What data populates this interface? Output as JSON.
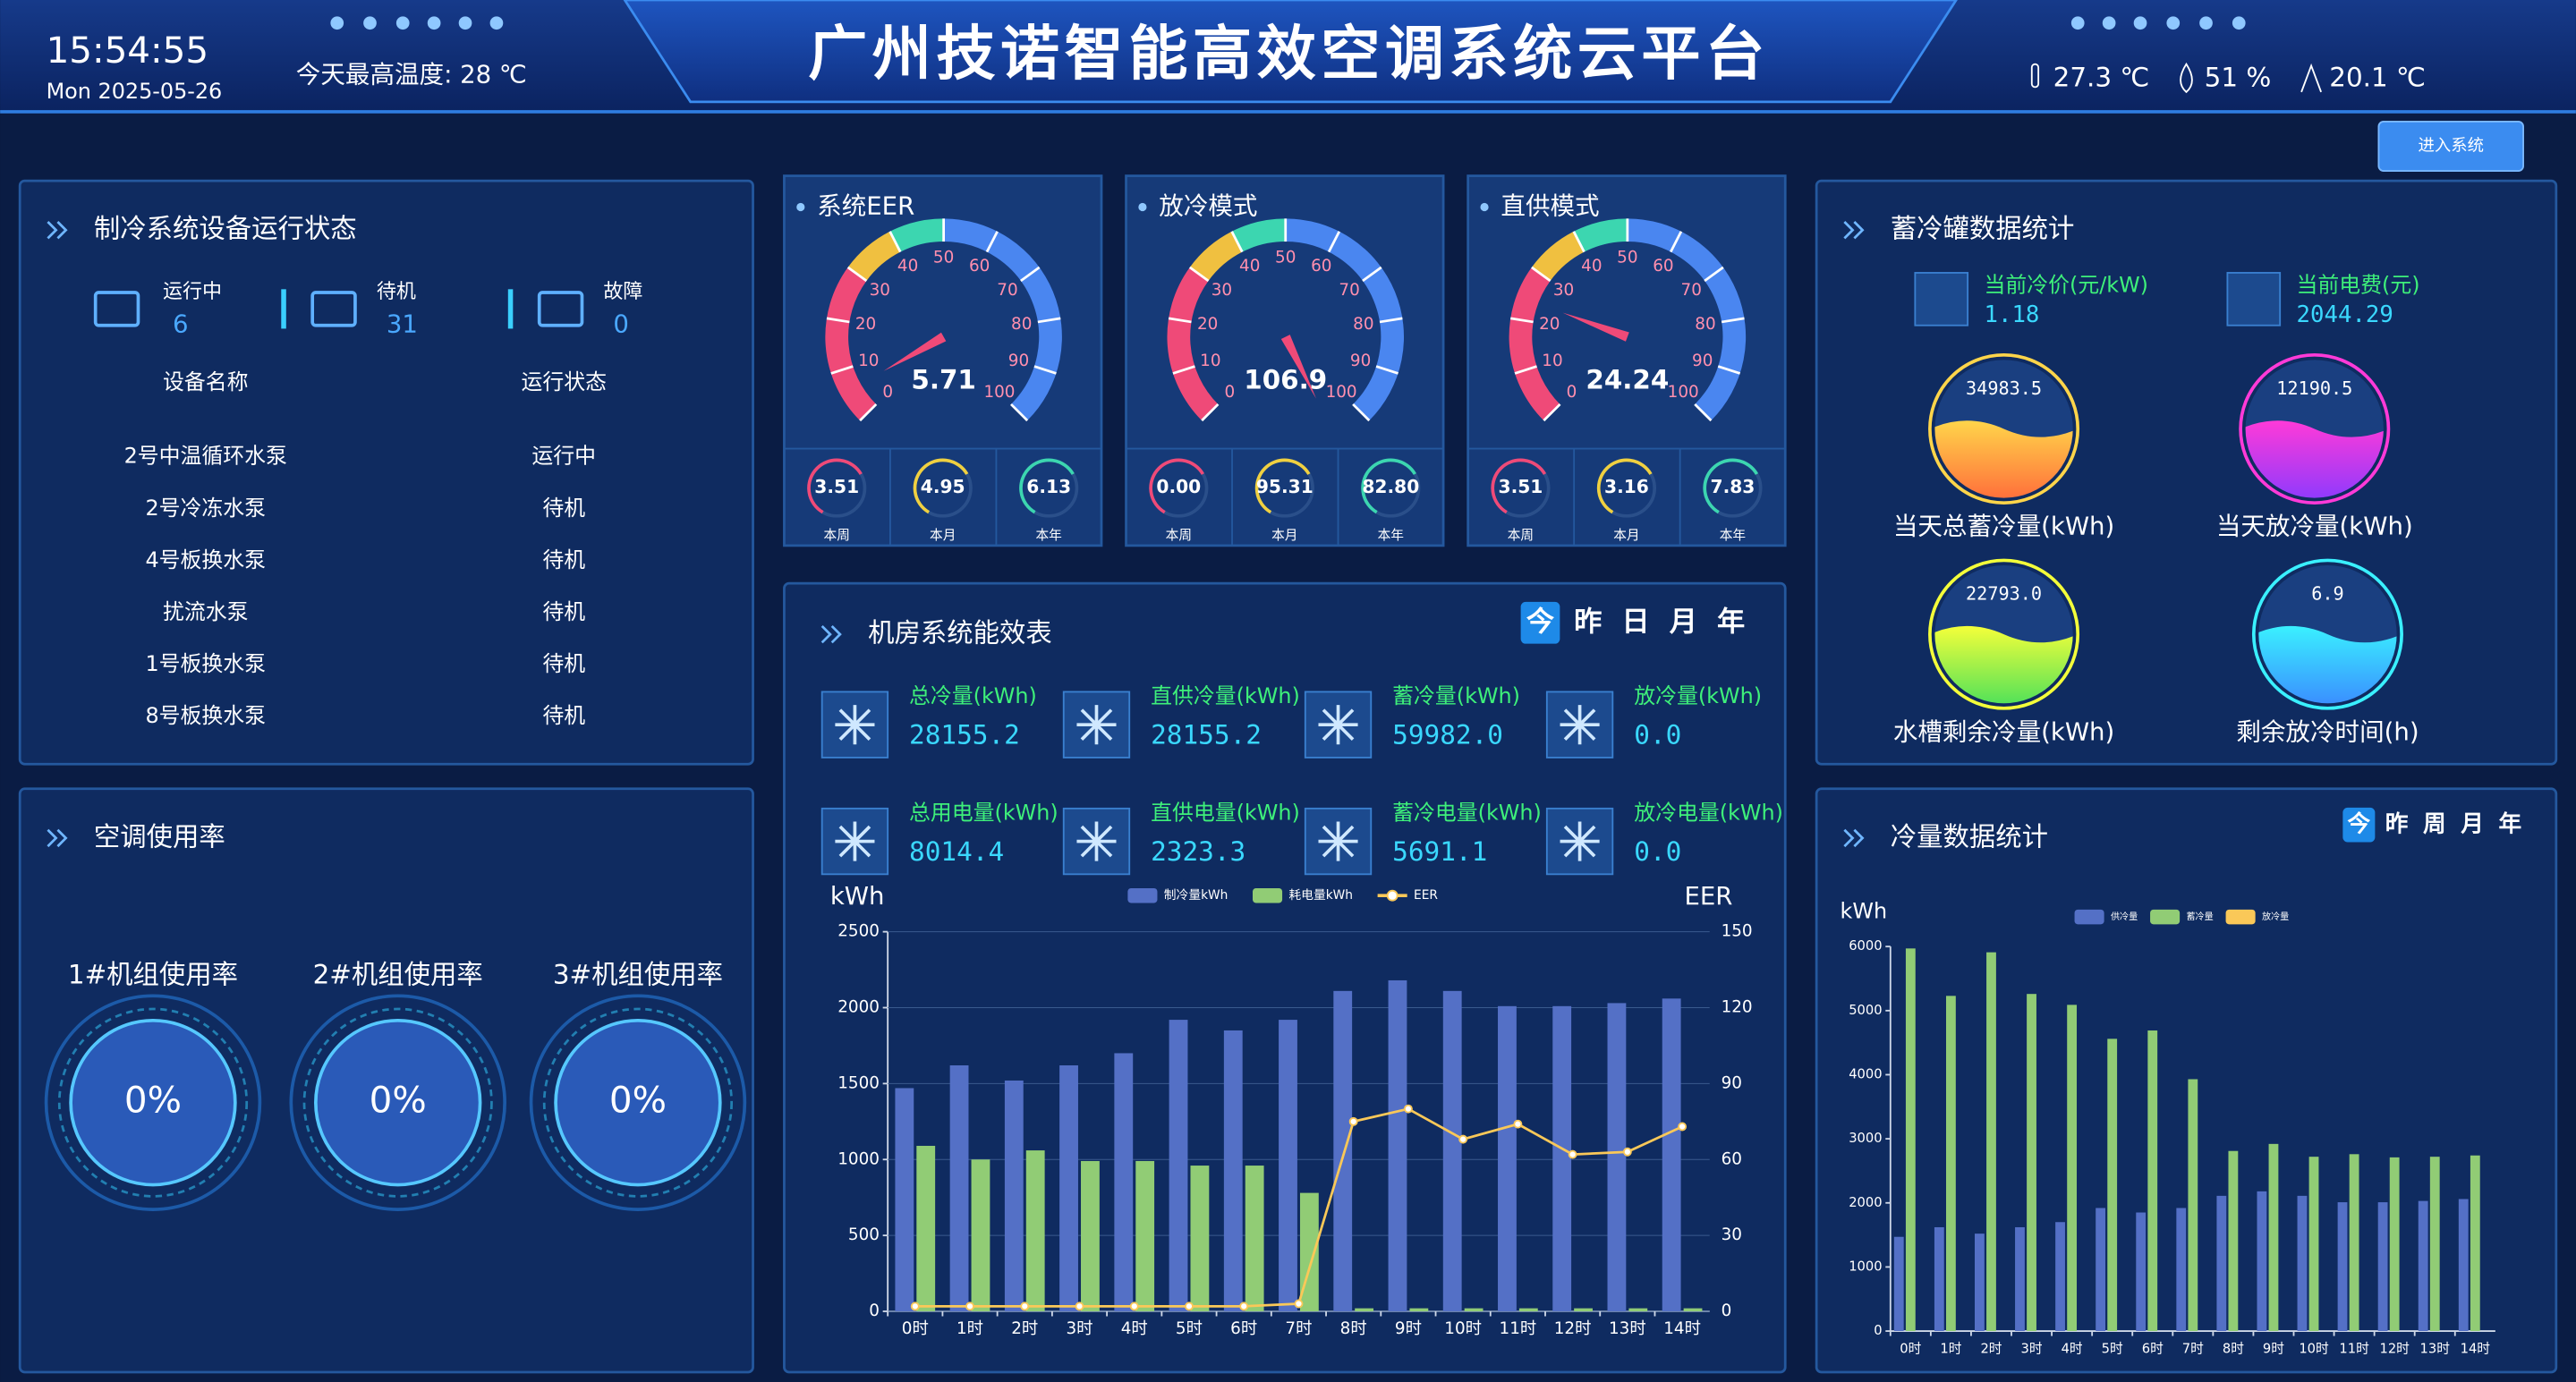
{
  "header": {
    "time": "15:54:55",
    "date": "Mon 2025-05-26",
    "max_temp": "今天最高温度: 28 ℃",
    "title": "广州技诺智能高效空调系统云平台",
    "temperature": "27.3 ℃",
    "humidity": "51 %",
    "outdoor": "20.1 ℃",
    "button": "进入系统"
  },
  "status_panel": {
    "title": "制冷系统设备运行状态",
    "stats": [
      {
        "label": "运行中",
        "value": 6
      },
      {
        "label": "待机",
        "value": 31
      },
      {
        "label": "故障",
        "value": 0
      }
    ],
    "columns": [
      "设备名称",
      "运行状态"
    ],
    "rows": [
      [
        "2号中温循环水泵",
        "运行中"
      ],
      [
        "2号冷冻水泵",
        "待机"
      ],
      [
        "4号板换水泵",
        "待机"
      ],
      [
        "扰流水泵",
        "待机"
      ],
      [
        "1号板换水泵",
        "待机"
      ],
      [
        "8号板换水泵",
        "待机"
      ]
    ]
  },
  "usage_panel": {
    "title": "空调使用率",
    "units": [
      {
        "name": "1#机组使用率",
        "value": "0%"
      },
      {
        "name": "2#机组使用率",
        "value": "0%"
      },
      {
        "name": "3#机组使用率",
        "value": "0%"
      }
    ]
  },
  "energy_panel": {
    "title": "机房系统能效表",
    "tabs": [
      "今",
      "昨",
      "日",
      "月",
      "年"
    ],
    "items": [
      {
        "label": "总冷量(kWh)",
        "value": "28155.2"
      },
      {
        "label": "直供冷量(kWh)",
        "value": "28155.2"
      },
      {
        "label": "蓄冷量(kWh)",
        "value": "59982.0"
      },
      {
        "label": "放冷量(kWh)",
        "value": "0.0"
      },
      {
        "label": "总用电量(kWh)",
        "value": "8014.4"
      },
      {
        "label": "直供电量(kWh)",
        "value": "2323.3"
      },
      {
        "label": "蓄冷电量(kWh)",
        "value": "5691.1"
      },
      {
        "label": "放冷电量(kWh)",
        "value": "0.0"
      }
    ]
  },
  "storage_panel": {
    "title": "蓄冷罐数据统计",
    "items": [
      {
        "label": "当前冷价(元/kW)",
        "value": "1.18"
      },
      {
        "label": "当前电费(元)",
        "value": "2044.29"
      }
    ],
    "balls": [
      {
        "value": "34983.5",
        "label": "当天总蓄冷量(kWh)",
        "colors": [
          "#ffd54a",
          "#ff6a3a"
        ]
      },
      {
        "value": "12190.5",
        "label": "当天放冷量(kWh)",
        "colors": [
          "#ff3ad8",
          "#8a3aff"
        ]
      },
      {
        "value": "22793.0",
        "label": "水槽剩余冷量(kWh)",
        "colors": [
          "#f4ff3a",
          "#4ae05a"
        ]
      },
      {
        "value": "6.9",
        "label": "剩余放冷时间(h)",
        "colors": [
          "#3af0ff",
          "#3a8aff"
        ]
      }
    ]
  },
  "cold_panel": {
    "title": "冷量数据统计",
    "tabs": [
      "今",
      "昨",
      "周",
      "月",
      "年"
    ]
  },
  "chart_data": [
    {
      "type": "gauge",
      "title": "系统EER",
      "value": 5.71,
      "ylim": [
        0,
        100
      ],
      "yticks": [
        0,
        10,
        20,
        30,
        40,
        50,
        60,
        70,
        80,
        90,
        100
      ],
      "bands": [
        {
          "to": 30,
          "color": "#ef4a78"
        },
        {
          "to": 40,
          "color": "#f0c040"
        },
        {
          "to": 50,
          "color": "#3cd6b0"
        },
        {
          "to": 100,
          "color": "#4a86f0"
        }
      ],
      "stats": [
        {
          "value": "3.51",
          "label": "本周"
        },
        {
          "value": "4.95",
          "label": "本月"
        },
        {
          "value": "6.13",
          "label": "本年"
        }
      ]
    },
    {
      "type": "gauge",
      "title": "放冷模式",
      "value": 106.9,
      "ylim": [
        0,
        100
      ],
      "yticks": [
        0,
        10,
        20,
        30,
        40,
        50,
        60,
        70,
        80,
        90,
        100
      ],
      "bands": [
        {
          "to": 30,
          "color": "#ef4a78"
        },
        {
          "to": 40,
          "color": "#f0c040"
        },
        {
          "to": 50,
          "color": "#3cd6b0"
        },
        {
          "to": 100,
          "color": "#4a86f0"
        }
      ],
      "stats": [
        {
          "value": "0.00",
          "label": "本周"
        },
        {
          "value": "95.31",
          "label": "本月"
        },
        {
          "value": "82.80",
          "label": "本年"
        }
      ]
    },
    {
      "type": "gauge",
      "title": "直供模式",
      "value": 24.24,
      "ylim": [
        0,
        100
      ],
      "yticks": [
        0,
        10,
        20,
        30,
        40,
        50,
        60,
        70,
        80,
        90,
        100
      ],
      "bands": [
        {
          "to": 30,
          "color": "#ef4a78"
        },
        {
          "to": 40,
          "color": "#f0c040"
        },
        {
          "to": 50,
          "color": "#3cd6b0"
        },
        {
          "to": 100,
          "color": "#4a86f0"
        }
      ],
      "stats": [
        {
          "value": "3.51",
          "label": "本周"
        },
        {
          "value": "3.16",
          "label": "本月"
        },
        {
          "value": "7.83",
          "label": "本年"
        }
      ]
    },
    {
      "type": "bar",
      "ylabel": "kWh",
      "y2label": "EER",
      "grid": true,
      "categories": [
        "0时",
        "1时",
        "2时",
        "3时",
        "4时",
        "5时",
        "6时",
        "7时",
        "8时",
        "9时",
        "10时",
        "11时",
        "12时",
        "13时",
        "14时"
      ],
      "series": [
        {
          "name": "制冷量kWh",
          "color": "#5470c6",
          "values": [
            1470,
            1620,
            1520,
            1620,
            1700,
            1920,
            1850,
            1920,
            2110,
            2180,
            2110,
            2010,
            2010,
            2030,
            2060
          ]
        },
        {
          "name": "耗电量kWh",
          "color": "#91cc75",
          "values": [
            1090,
            1000,
            1060,
            990,
            990,
            960,
            960,
            780,
            20,
            20,
            20,
            20,
            20,
            20,
            20
          ]
        },
        {
          "name": "EER",
          "color": "#fac858",
          "type": "line",
          "axis": "y2",
          "values": [
            2,
            2,
            2,
            2,
            2,
            2,
            2,
            3,
            75,
            80,
            68,
            74,
            62,
            63,
            73
          ]
        }
      ],
      "ylim": [
        0,
        2500
      ],
      "yticks": [
        0,
        500,
        1000,
        1500,
        2000,
        2500
      ],
      "y2lim": [
        0,
        150
      ],
      "y2ticks": [
        0,
        30,
        60,
        90,
        120,
        150
      ]
    },
    {
      "type": "bar",
      "ylabel": "kWh",
      "grid": false,
      "categories": [
        "0时",
        "1时",
        "2时",
        "3时",
        "4时",
        "5时",
        "6时",
        "7时",
        "8时",
        "9时",
        "10时",
        "11时",
        "12时",
        "13时",
        "14时"
      ],
      "series": [
        {
          "name": "供冷量",
          "color": "#5470c6",
          "values": [
            1470,
            1620,
            1520,
            1620,
            1700,
            1920,
            1850,
            1920,
            2110,
            2180,
            2110,
            2010,
            2010,
            2030,
            2060
          ]
        },
        {
          "name": "蓄冷量",
          "color": "#91cc75",
          "values": [
            5970,
            5230,
            5910,
            5260,
            5090,
            4560,
            4690,
            3930,
            2810,
            2920,
            2720,
            2760,
            2710,
            2720,
            2740
          ]
        },
        {
          "name": "放冷量",
          "color": "#fac858",
          "values": [
            0,
            0,
            0,
            0,
            0,
            0,
            0,
            0,
            0,
            0,
            0,
            0,
            0,
            0,
            0
          ]
        }
      ],
      "ylim": [
        0,
        6000
      ],
      "yticks": [
        0,
        1000,
        2000,
        3000,
        4000,
        5000,
        6000
      ]
    }
  ]
}
